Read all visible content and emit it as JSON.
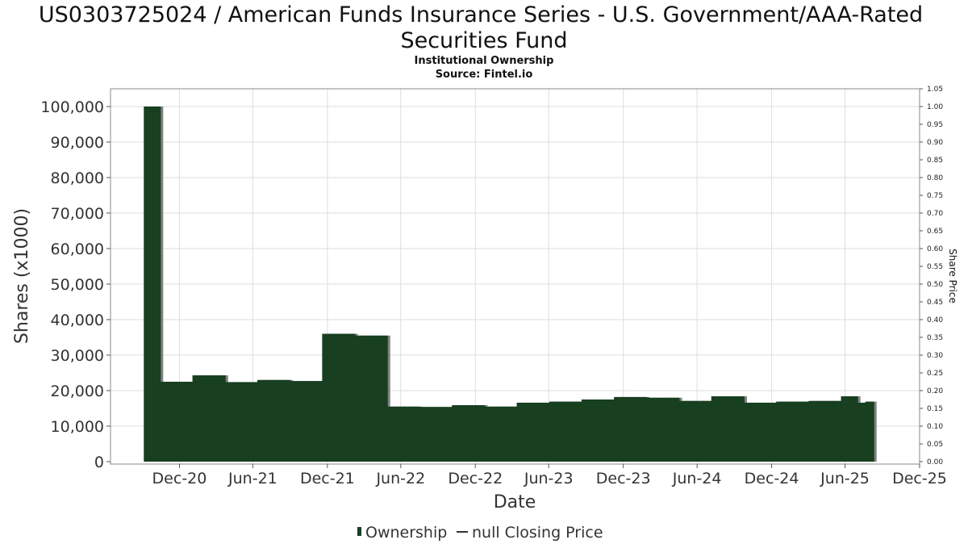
{
  "chart_data": {
    "type": "bar",
    "title_line1": "US0303725024 / American Funds Insurance Series - U.S. Government/AAA-Rated",
    "title_line2": "Securities Fund",
    "subtitle": "Institutional Ownership",
    "source": "Source: Fintel.io",
    "xlabel": "Date",
    "ylabel": "Shares (x1000)",
    "y2label": "Share Price",
    "ylim": [
      0,
      105000
    ],
    "y2lim": [
      0,
      1.05
    ],
    "yticks": [
      0,
      10000,
      20000,
      30000,
      40000,
      50000,
      60000,
      70000,
      80000,
      90000,
      100000
    ],
    "ytick_labels": [
      "0",
      "10,000",
      "20,000",
      "30,000",
      "40,000",
      "50,000",
      "60,000",
      "70,000",
      "80,000",
      "90,000",
      "100,000"
    ],
    "y2tick_labels": [
      "0.00",
      "0.05",
      "0.10",
      "0.15",
      "0.20",
      "0.25",
      "0.30",
      "0.35",
      "0.40",
      "0.45",
      "0.50",
      "0.55",
      "0.60",
      "0.65",
      "0.70",
      "0.75",
      "0.80",
      "0.85",
      "0.90",
      "0.95",
      "1.00",
      "1.05"
    ],
    "xlim": [
      "2020-06-30",
      "2025-12-31"
    ],
    "xticks": [
      {
        "label": "Dec-20",
        "date": "2020-12-31"
      },
      {
        "label": "Jun-21",
        "date": "2021-06-30"
      },
      {
        "label": "Dec-21",
        "date": "2021-12-31"
      },
      {
        "label": "Jun-22",
        "date": "2022-06-30"
      },
      {
        "label": "Dec-22",
        "date": "2022-12-31"
      },
      {
        "label": "Jun-23",
        "date": "2023-06-30"
      },
      {
        "label": "Dec-23",
        "date": "2023-12-31"
      },
      {
        "label": "Jun-24",
        "date": "2024-06-30"
      },
      {
        "label": "Dec-24",
        "date": "2024-12-31"
      },
      {
        "label": "Jun-25",
        "date": "2025-06-30"
      },
      {
        "label": "Dec-25",
        "date": "2025-12-31"
      }
    ],
    "grid": true,
    "legend": {
      "position": "bottom",
      "ownership": "Ownership",
      "price": "null Closing Price"
    },
    "colors": {
      "bar": "#173f20",
      "bar_shadow": "#7f7f7f",
      "grid": "#dedede"
    },
    "series": [
      {
        "name": "Ownership",
        "dates": [
          "2020-10-15",
          "2020-11-04",
          "2020-11-24",
          "2020-12-14",
          "2021-01-03",
          "2021-01-23",
          "2021-02-12",
          "2021-03-04",
          "2021-03-24",
          "2021-04-13",
          "2021-05-03",
          "2021-05-23",
          "2021-06-12",
          "2021-07-02",
          "2021-07-22",
          "2021-08-11",
          "2021-08-31",
          "2021-09-20",
          "2021-10-10",
          "2021-10-30",
          "2021-11-19",
          "2021-12-09",
          "2021-12-29",
          "2022-01-18",
          "2022-02-07",
          "2022-02-27",
          "2022-03-19",
          "2022-04-08",
          "2022-04-28",
          "2022-05-18",
          "2022-06-07",
          "2022-06-27",
          "2022-07-17",
          "2022-08-06",
          "2022-08-26",
          "2022-09-15",
          "2022-10-05",
          "2022-10-25",
          "2022-11-14",
          "2022-12-04",
          "2022-12-24",
          "2023-01-13",
          "2023-02-02",
          "2023-02-22",
          "2023-03-14",
          "2023-04-03",
          "2023-04-23",
          "2023-05-13",
          "2023-06-02",
          "2023-06-22",
          "2023-07-12",
          "2023-08-01",
          "2023-08-21",
          "2023-09-10",
          "2023-09-30",
          "2023-10-20",
          "2023-11-09",
          "2023-11-29",
          "2023-12-19",
          "2024-01-08",
          "2024-01-28",
          "2024-02-17",
          "2024-03-08",
          "2024-03-28",
          "2024-04-17",
          "2024-05-07",
          "2024-05-27",
          "2024-06-16",
          "2024-07-06",
          "2024-07-26",
          "2024-08-15",
          "2024-09-04",
          "2024-09-24",
          "2024-10-14",
          "2024-11-03",
          "2024-11-23",
          "2024-12-13",
          "2025-01-02",
          "2025-01-22",
          "2025-02-11",
          "2025-03-03",
          "2025-03-23",
          "2025-04-12",
          "2025-05-02",
          "2025-05-22",
          "2025-06-11",
          "2025-07-01",
          "2025-07-21",
          "2025-08-10",
          "2025-08-30"
        ],
        "values": [
          100000,
          100000,
          22500,
          22500,
          22500,
          22500,
          24300,
          24300,
          24300,
          24300,
          22400,
          22400,
          22400,
          22400,
          23000,
          23000,
          23000,
          23000,
          22700,
          22700,
          22700,
          22700,
          36000,
          36000,
          36000,
          36000,
          35500,
          35500,
          35500,
          35500,
          15500,
          15500,
          15500,
          15500,
          15400,
          15400,
          15400,
          15400,
          15900,
          15900,
          15900,
          15900,
          15500,
          15500,
          15500,
          15500,
          16600,
          16600,
          16600,
          16600,
          16900,
          16900,
          16900,
          16900,
          17500,
          17500,
          17500,
          17500,
          18200,
          18200,
          18200,
          18200,
          18000,
          18000,
          18000,
          18000,
          17100,
          17100,
          17100,
          17100,
          18400,
          18400,
          18400,
          18400,
          16600,
          16600,
          16600,
          16600,
          16900,
          16900,
          16900,
          16900,
          17100,
          17100,
          17100,
          17100,
          18400,
          18400,
          16600,
          16900
        ]
      }
    ]
  }
}
